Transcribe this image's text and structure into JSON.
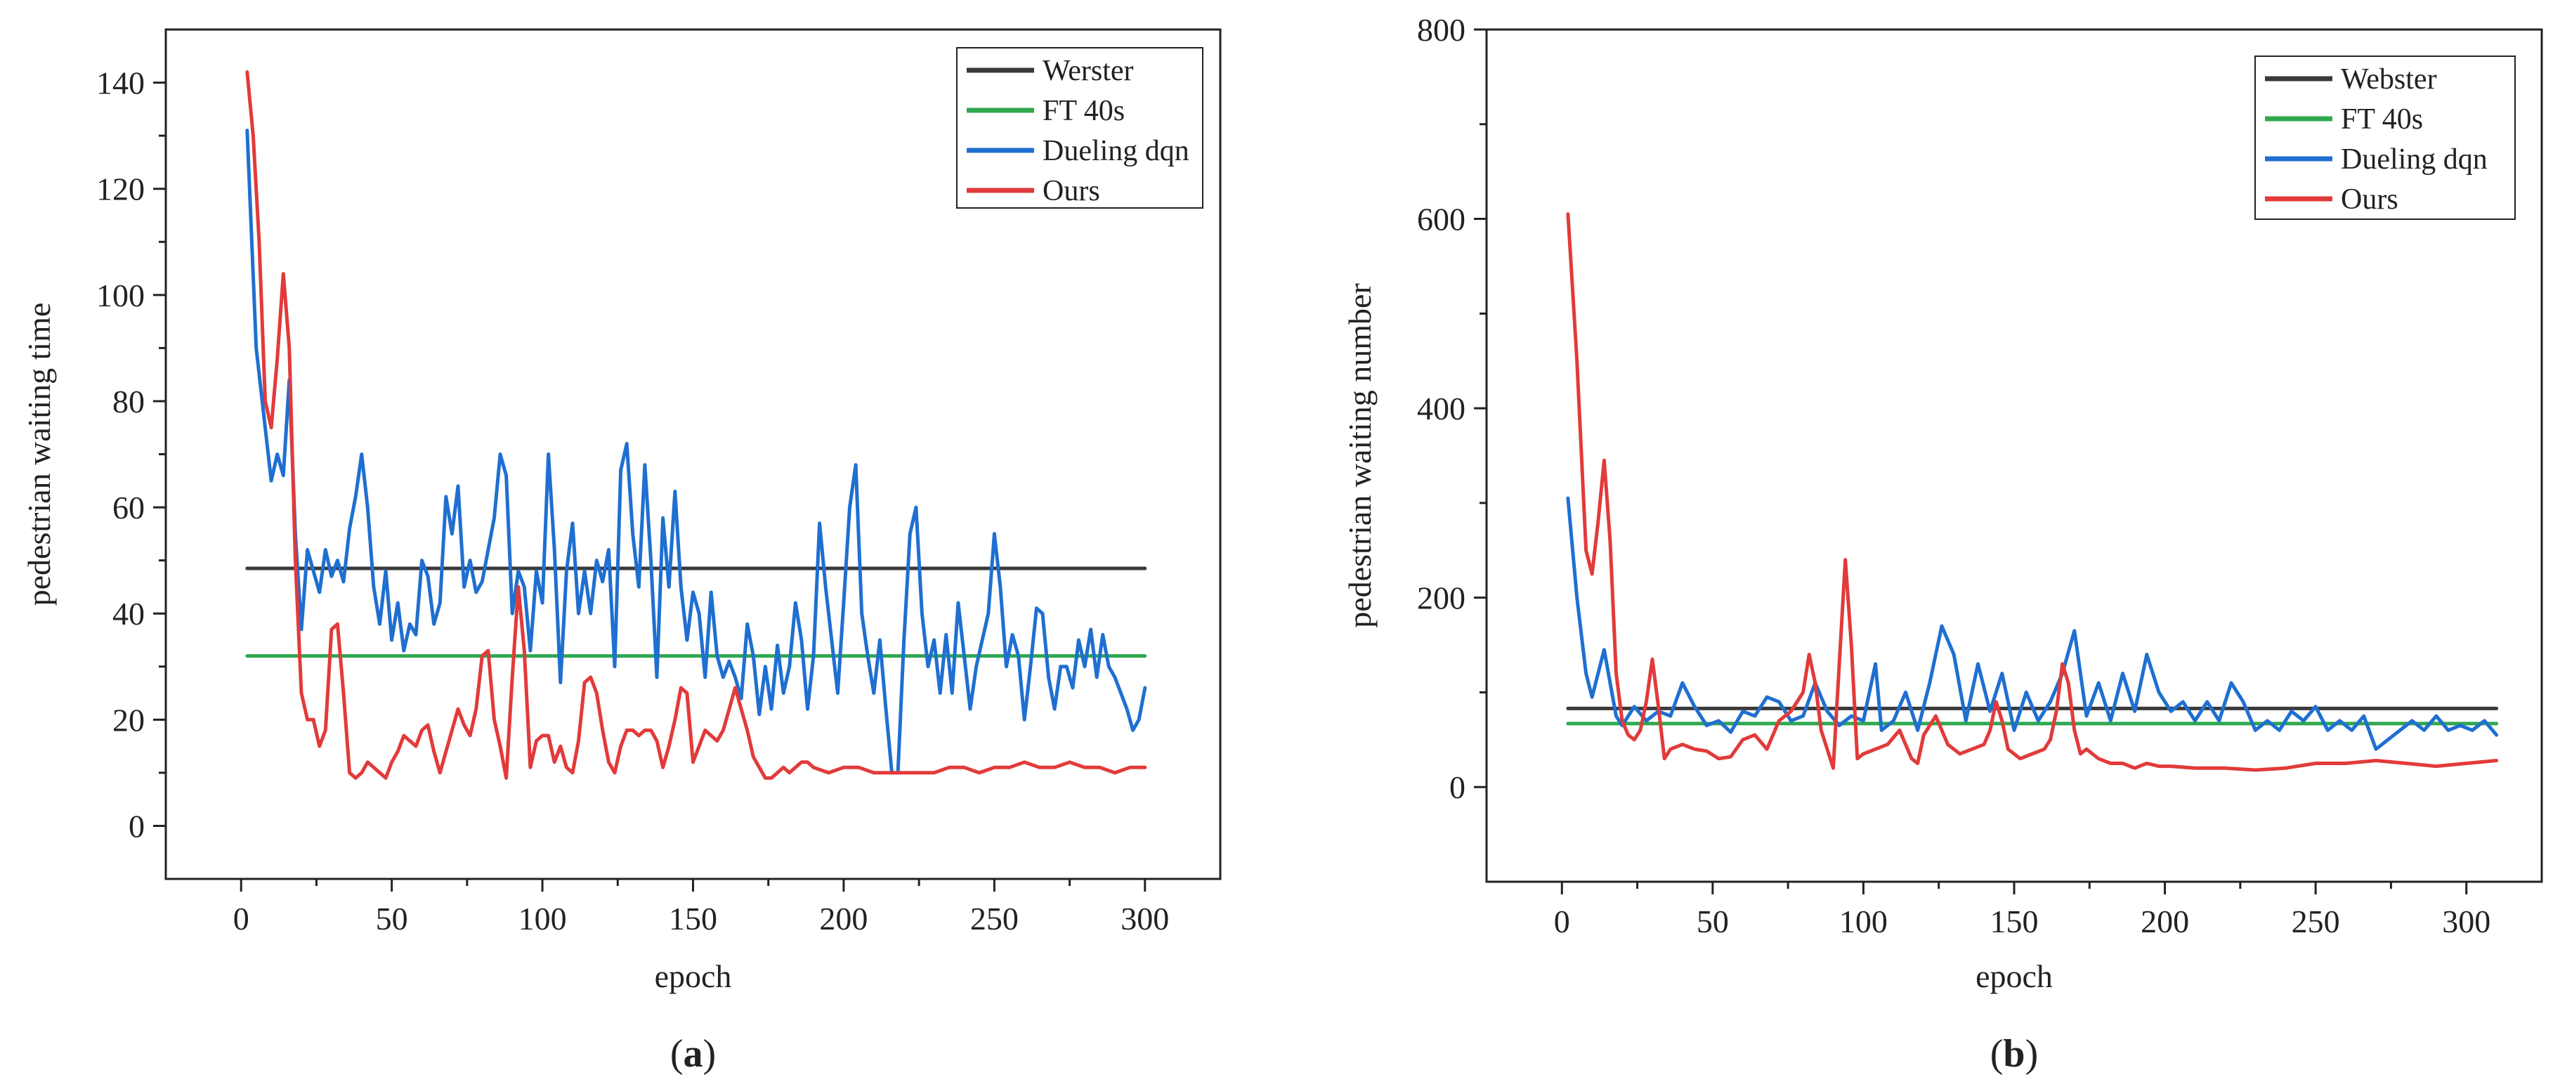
{
  "colors": {
    "webster": "#3a3a3a",
    "ft40": "#2fa84f",
    "dueling": "#1f6fd1",
    "ours": "#e23a3a",
    "axis": "#222222"
  },
  "chart_data": [
    {
      "type": "line",
      "panel_label": "a",
      "title": "",
      "xlabel": "epoch",
      "ylabel": "pedestrian waiting time",
      "xlim": [
        -25,
        325
      ],
      "ylim": [
        -10,
        150
      ],
      "xticks": [
        "0",
        "50",
        "100",
        "150",
        "200",
        "250",
        "300"
      ],
      "yticks": [
        "0",
        "20",
        "40",
        "60",
        "80",
        "100",
        "120",
        "140"
      ],
      "legend_position": "top-right",
      "series": [
        {
          "name": "Werster",
          "color": "#3a3a3a",
          "x": [
            2,
            300
          ],
          "y": [
            48.5,
            48.5
          ]
        },
        {
          "name": "FT 40s",
          "color": "#2fa84f",
          "x": [
            2,
            300
          ],
          "y": [
            32,
            32
          ]
        },
        {
          "name": "Dueling dqn",
          "color": "#1f6fd1",
          "x": [
            2,
            5,
            8,
            10,
            12,
            14,
            16,
            18,
            20,
            22,
            24,
            26,
            28,
            30,
            32,
            34,
            36,
            38,
            40,
            42,
            44,
            46,
            48,
            50,
            52,
            54,
            56,
            58,
            60,
            62,
            64,
            66,
            68,
            70,
            72,
            74,
            76,
            78,
            80,
            82,
            84,
            86,
            88,
            90,
            92,
            94,
            96,
            98,
            100,
            102,
            104,
            106,
            108,
            110,
            112,
            114,
            116,
            118,
            120,
            122,
            124,
            126,
            128,
            130,
            132,
            134,
            136,
            138,
            140,
            142,
            144,
            146,
            148,
            150,
            152,
            154,
            156,
            158,
            160,
            162,
            164,
            166,
            168,
            170,
            172,
            174,
            176,
            178,
            180,
            182,
            184,
            186,
            188,
            190,
            192,
            194,
            196,
            198,
            200,
            202,
            204,
            206,
            208,
            210,
            212,
            214,
            216,
            218,
            220,
            222,
            224,
            226,
            228,
            230,
            232,
            234,
            236,
            238,
            240,
            242,
            244,
            246,
            248,
            250,
            252,
            254,
            256,
            258,
            260,
            262,
            264,
            266,
            268,
            270,
            272,
            274,
            276,
            278,
            280,
            282,
            284,
            286,
            288,
            290,
            292,
            294,
            296,
            298,
            300
          ],
          "y": [
            131,
            90,
            75,
            65,
            70,
            66,
            84,
            55,
            37,
            52,
            48,
            44,
            52,
            47,
            50,
            46,
            56,
            62,
            70,
            60,
            45,
            38,
            48,
            35,
            42,
            33,
            38,
            36,
            50,
            47,
            38,
            42,
            62,
            55,
            64,
            45,
            50,
            44,
            46,
            52,
            58,
            70,
            66,
            40,
            48,
            45,
            33,
            48,
            42,
            70,
            52,
            27,
            48,
            57,
            40,
            48,
            40,
            50,
            46,
            52,
            30,
            67,
            72,
            55,
            45,
            68,
            50,
            28,
            58,
            45,
            63,
            45,
            35,
            44,
            40,
            28,
            44,
            32,
            28,
            31,
            28,
            24,
            38,
            32,
            21,
            30,
            22,
            34,
            25,
            30,
            42,
            35,
            22,
            32,
            57,
            45,
            35,
            25,
            42,
            60,
            68,
            40,
            32,
            25,
            35,
            22,
            10,
            10,
            35,
            55,
            60,
            40,
            30,
            35,
            25,
            36,
            25,
            42,
            32,
            22,
            30,
            35,
            40,
            55,
            45,
            30,
            36,
            32,
            20,
            30,
            41,
            40,
            28,
            22,
            30,
            30,
            26,
            35,
            30,
            37,
            28,
            36,
            30,
            28,
            25,
            22,
            18,
            20,
            26
          ]
        },
        {
          "name": "Ours",
          "color": "#e23a3a",
          "x": [
            2,
            4,
            6,
            8,
            10,
            12,
            14,
            16,
            18,
            20,
            22,
            24,
            26,
            28,
            30,
            32,
            34,
            36,
            38,
            40,
            42,
            44,
            46,
            48,
            50,
            52,
            54,
            56,
            58,
            60,
            62,
            64,
            66,
            68,
            70,
            72,
            74,
            76,
            78,
            80,
            82,
            84,
            86,
            88,
            90,
            92,
            94,
            96,
            98,
            100,
            102,
            104,
            106,
            108,
            110,
            112,
            114,
            116,
            118,
            120,
            122,
            124,
            126,
            128,
            130,
            132,
            134,
            136,
            138,
            140,
            142,
            144,
            146,
            148,
            150,
            152,
            154,
            156,
            158,
            160,
            162,
            164,
            166,
            168,
            170,
            172,
            174,
            176,
            178,
            180,
            182,
            184,
            186,
            188,
            190,
            195,
            200,
            205,
            210,
            215,
            220,
            225,
            230,
            235,
            240,
            245,
            250,
            255,
            260,
            265,
            270,
            275,
            280,
            285,
            290,
            295,
            300
          ],
          "y": [
            142,
            130,
            110,
            80,
            75,
            88,
            104,
            90,
            50,
            25,
            20,
            20,
            15,
            18,
            37,
            38,
            25,
            10,
            9,
            10,
            12,
            11,
            10,
            9,
            12,
            14,
            17,
            16,
            15,
            18,
            19,
            14,
            10,
            14,
            18,
            22,
            19,
            17,
            22,
            32,
            33,
            20,
            15,
            9,
            28,
            45,
            33,
            11,
            16,
            17,
            17,
            12,
            15,
            11,
            10,
            16,
            27,
            28,
            25,
            18,
            12,
            10,
            15,
            18,
            18,
            17,
            18,
            18,
            16,
            11,
            15,
            20,
            26,
            25,
            12,
            15,
            18,
            17,
            16,
            18,
            22,
            26,
            22,
            18,
            13,
            11,
            9,
            9,
            10,
            11,
            10,
            11,
            12,
            12,
            11,
            10,
            11,
            11,
            10,
            10,
            10,
            10,
            10,
            11,
            11,
            10,
            11,
            11,
            12,
            11,
            11,
            12,
            11,
            11,
            10,
            11,
            11
          ]
        }
      ]
    },
    {
      "type": "line",
      "panel_label": "b",
      "title": "",
      "xlabel": "epoch",
      "ylabel": "pedestrian waiting number",
      "xlim": [
        -25,
        325
      ],
      "ylim": [
        -100,
        800
      ],
      "xticks": [
        "0",
        "50",
        "100",
        "150",
        "200",
        "250",
        "300"
      ],
      "yticks": [
        "0",
        "200",
        "400",
        "600",
        "800"
      ],
      "legend_position": "top-right",
      "series": [
        {
          "name": "Webster",
          "color": "#3a3a3a",
          "x": [
            2,
            310
          ],
          "y": [
            83,
            83
          ]
        },
        {
          "name": "FT 40s",
          "color": "#2fa84f",
          "x": [
            2,
            310
          ],
          "y": [
            67,
            67
          ]
        },
        {
          "name": "Dueling dqn",
          "color": "#1f6fd1",
          "x": [
            2,
            5,
            8,
            10,
            12,
            14,
            16,
            18,
            20,
            24,
            28,
            32,
            36,
            40,
            44,
            48,
            52,
            56,
            60,
            64,
            68,
            72,
            76,
            80,
            84,
            88,
            92,
            96,
            100,
            104,
            106,
            110,
            114,
            118,
            122,
            126,
            130,
            134,
            138,
            142,
            146,
            150,
            154,
            158,
            162,
            166,
            170,
            174,
            178,
            182,
            186,
            190,
            194,
            198,
            202,
            206,
            210,
            214,
            218,
            222,
            226,
            230,
            234,
            238,
            242,
            246,
            250,
            254,
            258,
            262,
            266,
            270,
            274,
            278,
            282,
            286,
            290,
            294,
            298,
            302,
            306,
            310
          ],
          "y": [
            305,
            200,
            120,
            95,
            120,
            145,
            110,
            75,
            65,
            85,
            70,
            80,
            75,
            110,
            85,
            65,
            70,
            58,
            80,
            75,
            95,
            90,
            70,
            75,
            110,
            80,
            65,
            75,
            70,
            130,
            60,
            70,
            100,
            60,
            110,
            170,
            140,
            70,
            130,
            80,
            120,
            60,
            100,
            70,
            90,
            120,
            165,
            75,
            110,
            70,
            120,
            80,
            140,
            100,
            80,
            90,
            70,
            90,
            70,
            110,
            90,
            60,
            70,
            60,
            80,
            70,
            85,
            60,
            70,
            60,
            75,
            40,
            50,
            60,
            70,
            60,
            75,
            60,
            65,
            60,
            70,
            55
          ]
        },
        {
          "name": "Ours",
          "color": "#e23a3a",
          "x": [
            2,
            5,
            8,
            10,
            12,
            14,
            16,
            18,
            20,
            22,
            24,
            26,
            28,
            30,
            32,
            34,
            36,
            40,
            44,
            48,
            52,
            56,
            60,
            64,
            68,
            72,
            76,
            80,
            82,
            84,
            86,
            88,
            90,
            92,
            94,
            96,
            98,
            100,
            104,
            108,
            112,
            116,
            118,
            120,
            124,
            128,
            132,
            136,
            140,
            142,
            144,
            146,
            148,
            152,
            156,
            160,
            162,
            164,
            166,
            168,
            170,
            172,
            174,
            178,
            182,
            186,
            190,
            194,
            198,
            202,
            210,
            220,
            230,
            240,
            250,
            260,
            270,
            280,
            290,
            300,
            310
          ],
          "y": [
            605,
            450,
            250,
            225,
            280,
            345,
            260,
            120,
            70,
            55,
            50,
            60,
            90,
            135,
            85,
            30,
            40,
            45,
            40,
            38,
            30,
            32,
            50,
            55,
            40,
            70,
            80,
            100,
            140,
            110,
            60,
            40,
            20,
            130,
            240,
            150,
            30,
            35,
            40,
            45,
            60,
            30,
            25,
            55,
            75,
            45,
            35,
            40,
            45,
            60,
            90,
            70,
            40,
            30,
            35,
            40,
            50,
            80,
            130,
            110,
            60,
            35,
            40,
            30,
            25,
            25,
            20,
            25,
            22,
            22,
            20,
            20,
            18,
            20,
            25,
            25,
            28,
            25,
            22,
            25,
            28
          ]
        }
      ]
    }
  ]
}
